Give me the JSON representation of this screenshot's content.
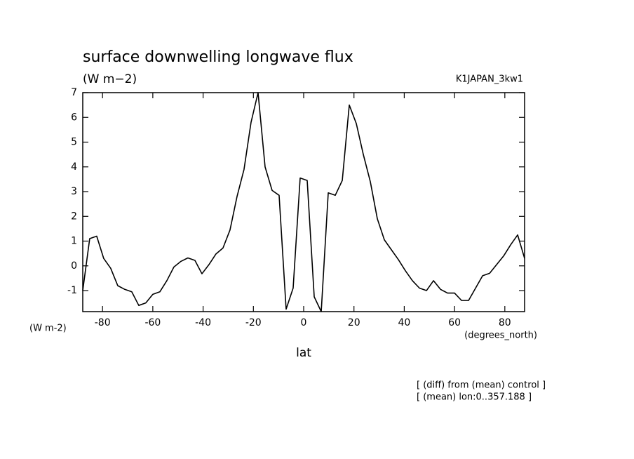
{
  "chart_data": {
    "type": "line",
    "title": "surface downwelling longwave flux",
    "subtitle": "(W m−2)",
    "annotation": "K1JAPAN_3kw1",
    "y_unit": "(W m-2)",
    "x_unit": "(degrees_north)",
    "x_label": "lat",
    "notes": [
      "[ (diff) from (mean) control ]",
      "[ (mean) lon:0..357.188 ]"
    ],
    "x": [
      -87.86,
      -85.1,
      -82.31,
      -79.53,
      -76.74,
      -73.95,
      -71.16,
      -68.37,
      -65.58,
      -62.79,
      -60.0,
      -57.21,
      -54.42,
      -51.63,
      -48.84,
      -46.05,
      -43.25,
      -40.46,
      -37.67,
      -34.88,
      -32.09,
      -29.3,
      -26.51,
      -23.72,
      -20.93,
      -18.14,
      -15.35,
      -12.56,
      -9.77,
      -6.98,
      -4.19,
      -1.4,
      1.4,
      4.19,
      6.98,
      9.77,
      12.56,
      15.35,
      18.14,
      20.93,
      23.72,
      26.51,
      29.3,
      32.09,
      34.88,
      37.67,
      40.46,
      43.25,
      46.05,
      48.84,
      51.63,
      54.42,
      57.21,
      60.0,
      62.79,
      65.58,
      68.37,
      71.16,
      73.95,
      76.74,
      79.53,
      82.31,
      85.1,
      87.86
    ],
    "series": [
      {
        "color": "#000000",
        "values": [
          -1.0,
          1.1,
          1.2,
          0.3,
          -0.1,
          -0.8,
          -0.95,
          -1.05,
          -1.6,
          -1.5,
          -1.15,
          -1.05,
          -0.6,
          -0.05,
          0.18,
          0.32,
          0.22,
          -0.32,
          0.05,
          0.48,
          0.72,
          1.45,
          2.8,
          3.9,
          5.8,
          7.0,
          4.0,
          3.05,
          2.85,
          -1.75,
          -0.9,
          3.55,
          3.45,
          -1.25,
          -1.85,
          2.95,
          2.85,
          3.45,
          6.5,
          5.75,
          4.5,
          3.4,
          1.9,
          1.05,
          0.65,
          0.25,
          -0.2,
          -0.6,
          -0.9,
          -1.0,
          -0.6,
          -0.95,
          -1.1,
          -1.1,
          -1.4,
          -1.4,
          -0.9,
          -0.4,
          -0.3,
          0.05,
          0.4,
          0.85,
          1.25,
          0.3
        ]
      }
    ],
    "xlim": [
      -87.86,
      87.86
    ],
    "ylim": [
      -1.85,
      7
    ],
    "xticks": [
      -80,
      -60,
      -40,
      -20,
      0,
      20,
      40,
      60,
      80
    ],
    "yticks": [
      -1,
      0,
      1,
      2,
      3,
      4,
      5,
      6,
      7
    ],
    "grid": false
  }
}
